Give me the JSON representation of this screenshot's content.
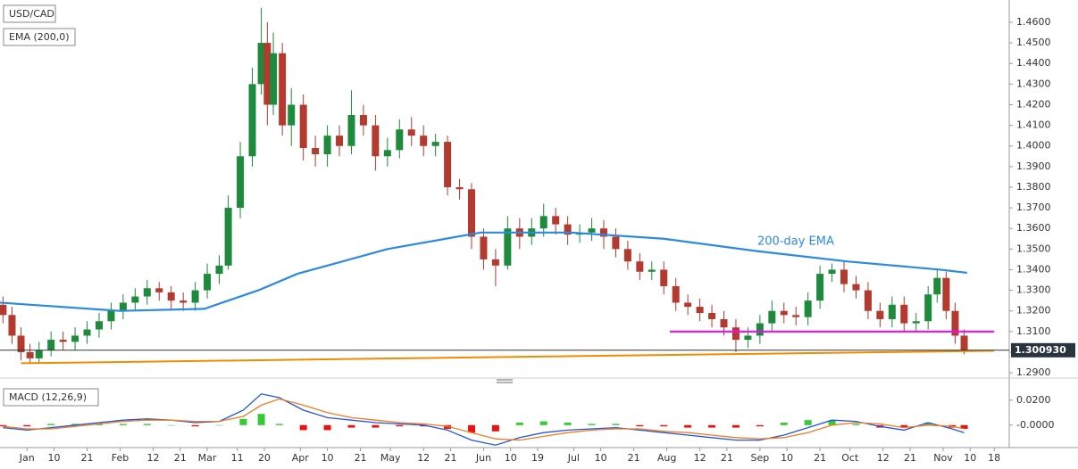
{
  "chart_data": [
    {
      "type": "candlestick",
      "title": "USD/CAD",
      "x": [
        -8,
        -5,
        -2,
        1,
        4,
        8,
        12,
        16,
        20,
        24,
        28,
        32,
        36,
        40,
        44,
        48,
        52,
        56,
        60,
        64,
        67,
        71,
        75,
        78,
        80,
        82,
        85,
        88,
        92,
        96,
        100,
        104,
        108,
        112,
        116,
        120,
        124,
        128,
        132,
        136,
        140,
        144,
        148,
        152,
        156,
        160,
        164,
        168,
        172,
        176,
        180,
        184,
        188,
        192,
        196,
        200,
        204,
        208,
        212,
        216,
        220,
        224,
        228,
        232,
        236,
        240,
        244,
        248,
        252,
        256,
        260,
        264,
        268,
        272,
        276,
        280,
        284,
        288,
        292,
        296,
        300,
        303,
        306,
        309,
        312
      ],
      "open": [
        1.323,
        1.318,
        1.308,
        1.3,
        1.297,
        1.301,
        1.306,
        1.305,
        1.308,
        1.311,
        1.315,
        1.32,
        1.324,
        1.327,
        1.331,
        1.329,
        1.325,
        1.324,
        1.33,
        1.338,
        1.342,
        1.37,
        1.395,
        1.43,
        1.45,
        1.42,
        1.445,
        1.41,
        1.42,
        1.399,
        1.396,
        1.405,
        1.4,
        1.415,
        1.41,
        1.395,
        1.398,
        1.408,
        1.405,
        1.4,
        1.402,
        1.38,
        1.379,
        1.356,
        1.345,
        1.342,
        1.36,
        1.356,
        1.36,
        1.366,
        1.362,
        1.357,
        1.358,
        1.36,
        1.356,
        1.35,
        1.344,
        1.339,
        1.34,
        1.332,
        1.324,
        1.322,
        1.319,
        1.316,
        1.312,
        1.306,
        1.308,
        1.314,
        1.32,
        1.318,
        1.317,
        1.325,
        1.338,
        1.34,
        1.333,
        1.33,
        1.32,
        1.316,
        1.323,
        1.314,
        1.315,
        1.328,
        1.336,
        1.32,
        1.308
      ],
      "high": [
        1.327,
        1.322,
        1.312,
        1.304,
        1.305,
        1.31,
        1.31,
        1.312,
        1.315,
        1.319,
        1.324,
        1.328,
        1.331,
        1.335,
        1.334,
        1.332,
        1.329,
        1.334,
        1.343,
        1.347,
        1.376,
        1.402,
        1.438,
        1.467,
        1.46,
        1.455,
        1.45,
        1.428,
        1.425,
        1.405,
        1.41,
        1.41,
        1.427,
        1.42,
        1.415,
        1.404,
        1.413,
        1.414,
        1.41,
        1.406,
        1.405,
        1.384,
        1.382,
        1.36,
        1.35,
        1.366,
        1.365,
        1.365,
        1.372,
        1.37,
        1.366,
        1.362,
        1.365,
        1.364,
        1.36,
        1.354,
        1.348,
        1.344,
        1.344,
        1.336,
        1.328,
        1.326,
        1.323,
        1.32,
        1.316,
        1.312,
        1.318,
        1.325,
        1.324,
        1.322,
        1.329,
        1.342,
        1.343,
        1.344,
        1.337,
        1.334,
        1.324,
        1.327,
        1.327,
        1.319,
        1.332,
        1.34,
        1.339,
        1.324,
        1.311
      ],
      "low": [
        1.314,
        1.304,
        1.296,
        1.295,
        1.295,
        1.298,
        1.301,
        1.301,
        1.304,
        1.307,
        1.311,
        1.316,
        1.32,
        1.323,
        1.325,
        1.321,
        1.32,
        1.32,
        1.326,
        1.333,
        1.34,
        1.365,
        1.39,
        1.425,
        1.41,
        1.415,
        1.405,
        1.4,
        1.393,
        1.39,
        1.39,
        1.395,
        1.396,
        1.405,
        1.388,
        1.39,
        1.394,
        1.4,
        1.395,
        1.395,
        1.376,
        1.374,
        1.35,
        1.34,
        1.332,
        1.34,
        1.35,
        1.352,
        1.356,
        1.357,
        1.352,
        1.353,
        1.354,
        1.35,
        1.346,
        1.34,
        1.335,
        1.335,
        1.328,
        1.32,
        1.318,
        1.315,
        1.312,
        1.308,
        1.3,
        1.302,
        1.304,
        1.31,
        1.314,
        1.313,
        1.313,
        1.321,
        1.334,
        1.329,
        1.326,
        1.316,
        1.312,
        1.312,
        1.31,
        1.31,
        1.311,
        1.324,
        1.316,
        1.304,
        1.299
      ],
      "close": [
        1.318,
        1.308,
        1.3,
        1.297,
        1.301,
        1.306,
        1.305,
        1.308,
        1.311,
        1.315,
        1.32,
        1.324,
        1.327,
        1.331,
        1.329,
        1.325,
        1.324,
        1.33,
        1.338,
        1.342,
        1.37,
        1.395,
        1.43,
        1.45,
        1.42,
        1.445,
        1.41,
        1.42,
        1.399,
        1.396,
        1.405,
        1.4,
        1.415,
        1.41,
        1.395,
        1.398,
        1.408,
        1.405,
        1.4,
        1.402,
        1.38,
        1.379,
        1.356,
        1.345,
        1.342,
        1.36,
        1.356,
        1.36,
        1.366,
        1.362,
        1.357,
        1.358,
        1.36,
        1.356,
        1.35,
        1.344,
        1.339,
        1.34,
        1.332,
        1.324,
        1.322,
        1.319,
        1.316,
        1.312,
        1.306,
        1.308,
        1.314,
        1.32,
        1.318,
        1.317,
        1.325,
        1.338,
        1.34,
        1.333,
        1.33,
        1.32,
        1.316,
        1.323,
        1.314,
        1.315,
        1.328,
        1.336,
        1.32,
        1.308,
        1.30093
      ],
      "up_color": "#1e8a3c",
      "down_color": "#b23a2e",
      "series": [
        {
          "name": "EMA (200,0)",
          "color": "#2b8ae0",
          "x": [
            -9,
            31,
            59,
            77,
            90,
            120,
            151,
            181,
            212,
            243,
            273,
            304,
            313
          ],
          "values": [
            1.324,
            1.32,
            1.321,
            1.33,
            1.338,
            1.35,
            1.358,
            1.358,
            1.355,
            1.349,
            1.344,
            1.34,
            1.3385
          ]
        }
      ],
      "annotation": "200-day EMA",
      "lines": [
        {
          "color": "#ff00ff",
          "x": [
            214,
            322
          ],
          "values": [
            1.31,
            1.31
          ]
        },
        {
          "color": "#f08c00",
          "x": [
            -2,
            322
          ],
          "values": [
            1.2946,
            1.3007
          ]
        }
      ],
      "last_price": {
        "value": 1.30093,
        "label": "1.300930"
      },
      "xlim": [
        -9,
        327
      ],
      "ylim": [
        1.2883,
        1.4708
      ],
      "grid": false,
      "yticks": [
        {
          "value": 1.29,
          "label": "1.2900"
        },
        {
          "value": 1.3,
          "label": "1.3000"
        },
        {
          "value": 1.31,
          "label": "1.3100"
        },
        {
          "value": 1.32,
          "label": "1.3200"
        },
        {
          "value": 1.33,
          "label": "1.3300"
        },
        {
          "value": 1.34,
          "label": "1.3400"
        },
        {
          "value": 1.35,
          "label": "1.3500"
        },
        {
          "value": 1.36,
          "label": "1.3600"
        },
        {
          "value": 1.37,
          "label": "1.3700"
        },
        {
          "value": 1.38,
          "label": "1.3800"
        },
        {
          "value": 1.39,
          "label": "1.3900"
        },
        {
          "value": 1.4,
          "label": "1.4000"
        },
        {
          "value": 1.41,
          "label": "1.4100"
        },
        {
          "value": 1.42,
          "label": "1.4200"
        },
        {
          "value": 1.43,
          "label": "1.4300"
        },
        {
          "value": 1.44,
          "label": "1.4400"
        },
        {
          "value": 1.45,
          "label": "1.4500"
        },
        {
          "value": 1.46,
          "label": "1.4600"
        }
      ],
      "xticks": [
        {
          "value": 0,
          "label": "Jan"
        },
        {
          "value": 9,
          "label": "10"
        },
        {
          "value": 20,
          "label": "21"
        },
        {
          "value": 31,
          "label": "Feb"
        },
        {
          "value": 42,
          "label": "12"
        },
        {
          "value": 51,
          "label": "21"
        },
        {
          "value": 60,
          "label": "Mar"
        },
        {
          "value": 70,
          "label": "11"
        },
        {
          "value": 79,
          "label": "20"
        },
        {
          "value": 91,
          "label": "Apr"
        },
        {
          "value": 100,
          "label": "10"
        },
        {
          "value": 111,
          "label": "21"
        },
        {
          "value": 121,
          "label": "May"
        },
        {
          "value": 132,
          "label": "12"
        },
        {
          "value": 141,
          "label": "21"
        },
        {
          "value": 152,
          "label": "Jun"
        },
        {
          "value": 161,
          "label": "10"
        },
        {
          "value": 170,
          "label": "19"
        },
        {
          "value": 182,
          "label": "Jul"
        },
        {
          "value": 191,
          "label": "10"
        },
        {
          "value": 202,
          "label": "21"
        },
        {
          "value": 213,
          "label": "Aug"
        },
        {
          "value": 224,
          "label": "12"
        },
        {
          "value": 233,
          "label": "21"
        },
        {
          "value": 244,
          "label": "Sep"
        },
        {
          "value": 253,
          "label": "10"
        },
        {
          "value": 264,
          "label": "21"
        },
        {
          "value": 274,
          "label": "Oct"
        },
        {
          "value": 285,
          "label": "12"
        },
        {
          "value": 294,
          "label": "21"
        },
        {
          "value": 305,
          "label": "Nov"
        },
        {
          "value": 314,
          "label": "10"
        },
        {
          "value": 322,
          "label": "18"
        }
      ]
    },
    {
      "type": "macd",
      "title": "MACD (12,26,9)",
      "x": [
        -8,
        0,
        8,
        16,
        24,
        32,
        40,
        48,
        56,
        64,
        72,
        78,
        84,
        92,
        100,
        108,
        116,
        124,
        132,
        140,
        148,
        156,
        164,
        172,
        180,
        188,
        196,
        204,
        212,
        220,
        228,
        236,
        244,
        252,
        260,
        268,
        276,
        284,
        292,
        300,
        308,
        312
      ],
      "lines": [
        {
          "color": "#2255dd",
          "values": [
            -0.002,
            -0.004,
            -0.002,
            0.0,
            0.002,
            0.004,
            0.005,
            0.004,
            0.002,
            0.003,
            0.012,
            0.025,
            0.022,
            0.012,
            0.006,
            0.004,
            0.002,
            0.001,
            0.0,
            -0.004,
            -0.012,
            -0.016,
            -0.01,
            -0.006,
            -0.004,
            -0.003,
            -0.002,
            -0.004,
            -0.006,
            -0.008,
            -0.01,
            -0.012,
            -0.012,
            -0.008,
            -0.002,
            0.004,
            0.003,
            -0.001,
            -0.004,
            0.002,
            -0.003,
            -0.006
          ]
        },
        {
          "color": "#f07c20",
          "values": [
            -0.001,
            -0.003,
            -0.003,
            -0.001,
            0.001,
            0.003,
            0.004,
            0.004,
            0.003,
            0.003,
            0.007,
            0.016,
            0.021,
            0.016,
            0.01,
            0.006,
            0.004,
            0.002,
            0.001,
            -0.001,
            -0.006,
            -0.011,
            -0.012,
            -0.009,
            -0.006,
            -0.004,
            -0.003,
            -0.003,
            -0.005,
            -0.006,
            -0.008,
            -0.01,
            -0.011,
            -0.01,
            -0.006,
            0.0,
            0.002,
            0.001,
            -0.002,
            0.0,
            -0.001,
            -0.003
          ]
        }
      ],
      "histogram": {
        "up_color": "#33cc33",
        "down_color": "#ee1111",
        "values": [
          -0.001,
          -0.001,
          0.001,
          0.001,
          0.001,
          0.001,
          0.001,
          0.0,
          -0.001,
          0.0,
          0.005,
          0.009,
          0.001,
          -0.004,
          -0.004,
          -0.002,
          -0.002,
          -0.001,
          -0.001,
          -0.003,
          -0.006,
          -0.005,
          0.002,
          0.003,
          0.002,
          0.001,
          0.001,
          -0.001,
          -0.001,
          -0.002,
          -0.002,
          -0.002,
          -0.001,
          0.002,
          0.004,
          0.004,
          0.001,
          -0.002,
          -0.002,
          0.002,
          -0.002,
          -0.003
        ]
      },
      "xlim": [
        -9,
        327
      ],
      "ylim": [
        -0.018,
        0.032
      ],
      "yticks": [
        {
          "value": 0.02,
          "label": "0.0200"
        },
        {
          "value": 0,
          "label": "-0.0000"
        }
      ]
    }
  ]
}
